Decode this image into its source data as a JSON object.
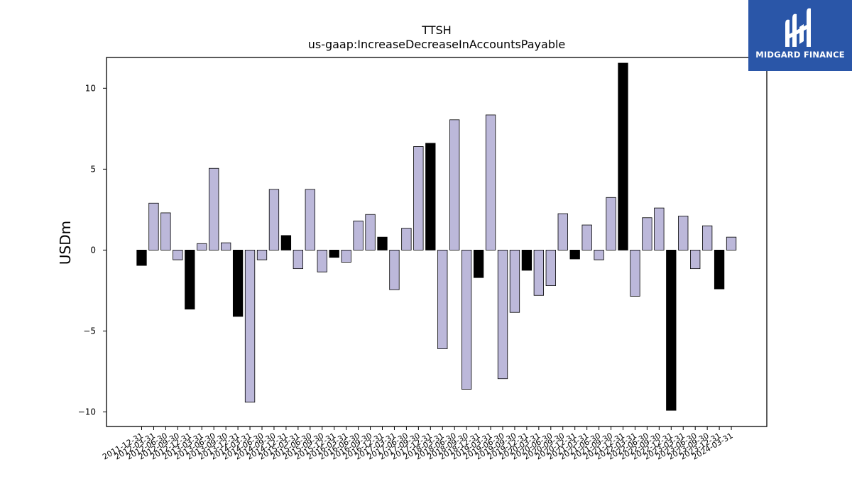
{
  "chart_data": {
    "type": "bar",
    "title": "TTSH",
    "subtitle": "us-gaap:IncreaseDecreaseInAccountsPayable",
    "xlabel": "",
    "ylabel": "USDm",
    "ylim": [
      -10.9,
      11.9
    ],
    "yticks": [
      10,
      5,
      0,
      -5,
      -10
    ],
    "ytick_labels": [
      "10",
      "5",
      "0",
      "−5",
      "−10"
    ],
    "grid": false,
    "categories": [
      "2011-12-31",
      "2012-03-31",
      "2012-06-30",
      "2012-09-30",
      "2012-12-31",
      "2013-03-31",
      "2013-06-30",
      "2013-09-30",
      "2013-12-31",
      "2014-03-31",
      "2014-06-30",
      "2014-09-30",
      "2014-12-31",
      "2015-03-31",
      "2015-06-30",
      "2015-09-30",
      "2015-12-31",
      "2016-03-31",
      "2016-06-30",
      "2016-09-30",
      "2016-12-31",
      "2017-03-31",
      "2017-06-30",
      "2017-09-30",
      "2017-12-31",
      "2018-03-31",
      "2018-06-30",
      "2018-09-30",
      "2018-12-31",
      "2019-03-31",
      "2019-06-30",
      "2019-09-30",
      "2019-12-31",
      "2020-03-31",
      "2020-06-30",
      "2020-09-30",
      "2020-12-31",
      "2021-03-31",
      "2021-06-30",
      "2021-09-30",
      "2021-12-31",
      "2022-03-31",
      "2022-06-30",
      "2022-09-30",
      "2022-12-31",
      "2023-03-31",
      "2023-06-30",
      "2023-09-30",
      "2023-12-31",
      "2024-03-31"
    ],
    "values": [
      -0.95,
      2.9,
      2.3,
      -0.6,
      -3.65,
      0.4,
      5.05,
      0.45,
      -4.1,
      -9.4,
      -0.6,
      3.75,
      0.9,
      -1.15,
      3.75,
      -1.35,
      -0.45,
      -0.75,
      1.8,
      2.2,
      0.8,
      -2.45,
      1.35,
      6.4,
      6.6,
      -6.1,
      8.05,
      -8.6,
      -1.7,
      8.35,
      -7.95,
      -3.85,
      -1.25,
      -2.8,
      -2.2,
      2.25,
      -0.55,
      1.55,
      -0.6,
      3.25,
      11.55,
      -2.85,
      2.0,
      2.6,
      -9.9,
      2.1,
      -1.15,
      1.5,
      -2.4,
      0.8
    ],
    "highlight_color": "#000000",
    "bar_color": "#bcb8da",
    "highlighted_categories": [
      "2011-12-31",
      "2012-12-31",
      "2013-12-31",
      "2014-12-31",
      "2015-12-31",
      "2016-12-31",
      "2017-12-31",
      "2018-12-31",
      "2019-12-31",
      "2020-12-31",
      "2021-12-31",
      "2022-12-31",
      "2023-12-31"
    ]
  },
  "logo": {
    "text": "MIDGARD FINANCE",
    "background": "#2a56a8"
  }
}
